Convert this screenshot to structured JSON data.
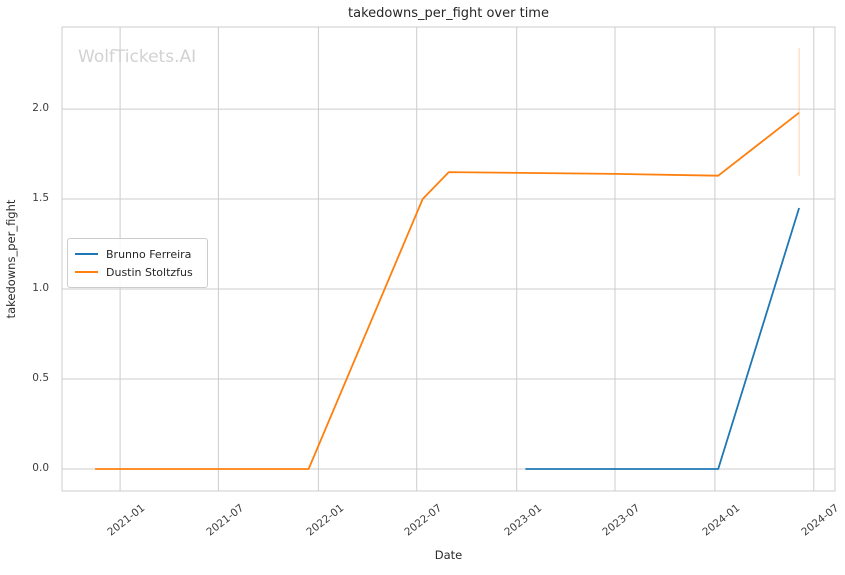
{
  "header": {
    "title": "takedowns_per_fight over time",
    "watermark": "WolfTickets.AI"
  },
  "colors": {
    "series_blue": "#1f77b4",
    "series_orange": "#ff7f0e",
    "grid": "#cccccc",
    "spine": "#cccccc",
    "tick_text": "#3d3d3d",
    "watermark": "#d2d2d2"
  },
  "chart_data": {
    "type": "line",
    "title": "takedowns_per_fight over time",
    "xlabel": "Date",
    "ylabel": "takedowns_per_fight",
    "grid": true,
    "legend_position": "center-left",
    "xlim": [
      "2020-09-16",
      "2024-08-09"
    ],
    "ylim": [
      -0.1225,
      2.4561
    ],
    "x_ticks": [
      {
        "label": "2021-01",
        "date": "2021-01-01"
      },
      {
        "label": "2021-07",
        "date": "2021-07-01"
      },
      {
        "label": "2022-01",
        "date": "2022-01-01"
      },
      {
        "label": "2022-07",
        "date": "2022-07-01"
      },
      {
        "label": "2023-01",
        "date": "2023-01-01"
      },
      {
        "label": "2023-07",
        "date": "2023-07-01"
      },
      {
        "label": "2024-01",
        "date": "2024-01-01"
      },
      {
        "label": "2024-07",
        "date": "2024-07-01"
      }
    ],
    "y_ticks": [
      {
        "label": "0.0",
        "value": 0.0
      },
      {
        "label": "0.5",
        "value": 0.5
      },
      {
        "label": "1.0",
        "value": 1.0
      },
      {
        "label": "1.5",
        "value": 1.5
      },
      {
        "label": "2.0",
        "value": 2.0
      }
    ],
    "series": [
      {
        "name": "Brunno Ferreira",
        "color": "#1f77b4",
        "points": [
          [
            "2023-01-17",
            0.0
          ],
          [
            "2024-01-07",
            0.0
          ],
          [
            "2024-06-04",
            1.45
          ]
        ]
      },
      {
        "name": "Dustin Stoltzfus",
        "color": "#ff7f0e",
        "points": [
          [
            "2020-11-16",
            0.0
          ],
          [
            "2021-12-14",
            0.0
          ],
          [
            "2022-07-12",
            1.5
          ],
          [
            "2022-08-29",
            1.65
          ],
          [
            "2023-07-01",
            1.64
          ],
          [
            "2024-01-07",
            1.63
          ],
          [
            "2024-06-04",
            1.98
          ]
        ]
      }
    ],
    "error_bars": [
      {
        "series": "Dustin Stoltzfus",
        "date": "2024-06-04",
        "low": 1.63,
        "high": 2.34,
        "color": "#ff7f0e",
        "opacity": 0.3
      }
    ]
  }
}
